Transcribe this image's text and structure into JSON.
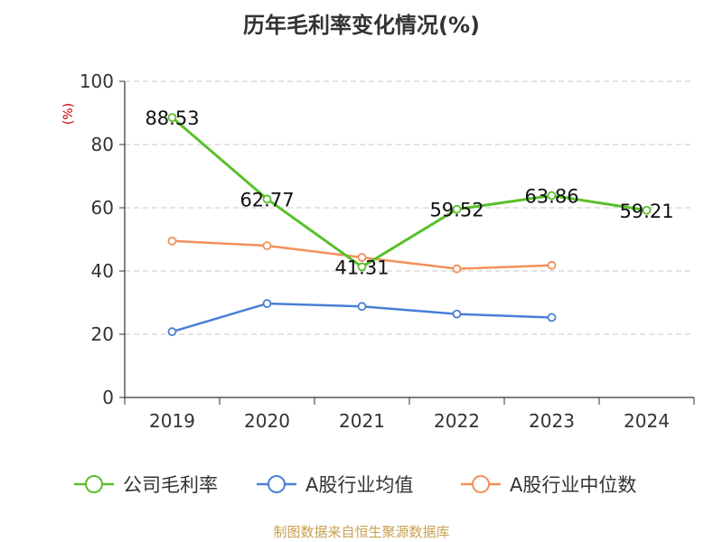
{
  "chart_data": {
    "type": "line",
    "title": "历年毛利率变化情况(%)",
    "ylabel": "(%)",
    "xlabel": "",
    "categories": [
      "2019",
      "2020",
      "2021",
      "2022",
      "2023",
      "2024"
    ],
    "ylim": [
      0,
      100
    ],
    "yticks": [
      0,
      20,
      40,
      60,
      80,
      100
    ],
    "grid": true,
    "legend_position": "bottom",
    "series": [
      {
        "name": "公司毛利率",
        "color": "#5ac02a",
        "values": [
          88.53,
          62.77,
          41.31,
          59.52,
          63.86,
          59.21
        ],
        "labels": [
          "88.53",
          "62.77",
          "41.31",
          "59.52",
          "63.86",
          "59.21"
        ]
      },
      {
        "name": "A股行业均值",
        "color": "#4a7fd6",
        "values": [
          20.8,
          29.7,
          28.8,
          26.4,
          25.3,
          null
        ]
      },
      {
        "name": "A股行业中位数",
        "color": "#f4905a",
        "values": [
          49.5,
          48.0,
          44.3,
          40.7,
          41.8,
          null
        ]
      }
    ]
  },
  "footer": {
    "source": "制图数据来自恒生聚源数据库"
  }
}
